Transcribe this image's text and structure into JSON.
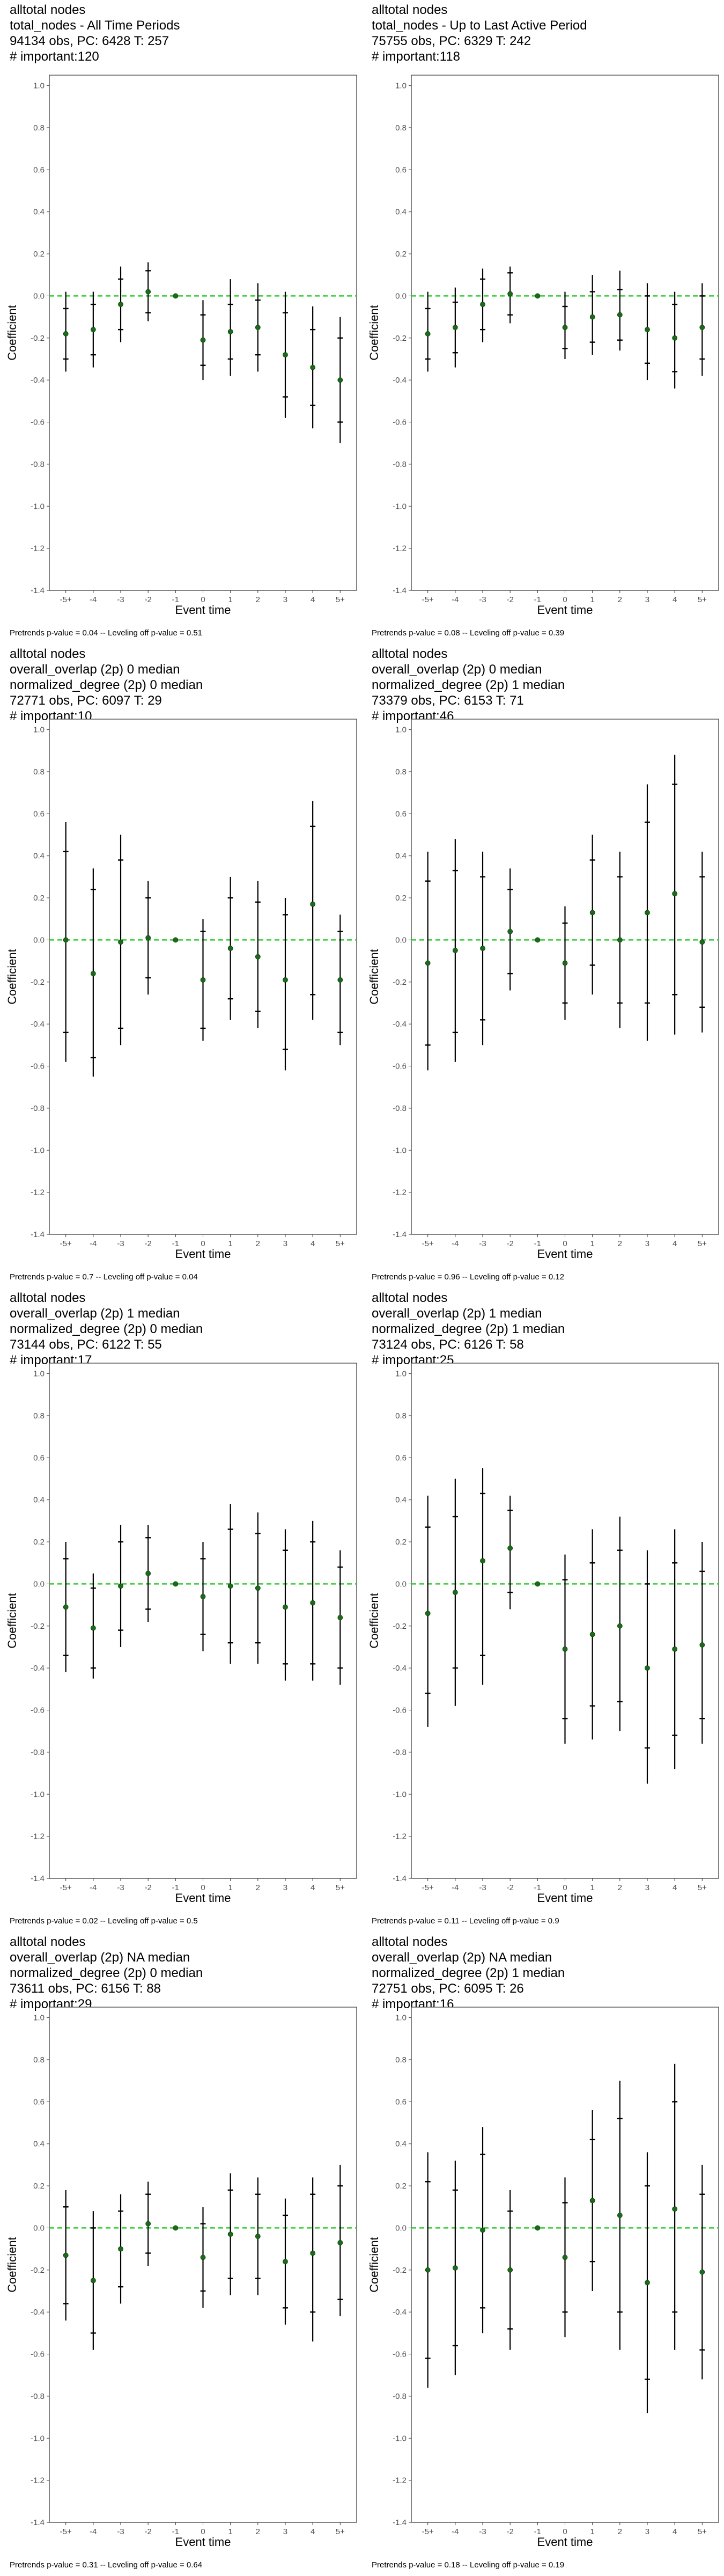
{
  "chart_data": [
    {
      "type": "scatter",
      "title_lines": [
        "alltotal nodes",
        "total_nodes - All Time Periods",
        "94134 obs, PC: 6428 T: 257",
        "# important:120"
      ],
      "xlabel": "Event time",
      "ylabel": "Coefficient",
      "ylim": [
        -1.4,
        1.05
      ],
      "categories": [
        "-5+",
        "-4",
        "-3",
        "-2",
        "-1",
        "0",
        "1",
        "2",
        "3",
        "4",
        "5+"
      ],
      "yticks": [
        "1.0",
        "0.8",
        "0.6",
        "0.4",
        "0.2",
        "0.0",
        "-0.2",
        "-0.4",
        "-0.6",
        "-0.8",
        "-1.0",
        "-1.2",
        "-1.4"
      ],
      "estimates": [
        -0.18,
        -0.16,
        -0.04,
        0.02,
        0.0,
        -0.21,
        -0.17,
        -0.15,
        -0.28,
        -0.34,
        -0.4
      ],
      "ci_inner": [
        [
          -0.3,
          -0.06
        ],
        [
          -0.28,
          -0.04
        ],
        [
          -0.16,
          0.08
        ],
        [
          -0.08,
          0.12
        ],
        null,
        [
          -0.33,
          -0.09
        ],
        [
          -0.3,
          -0.04
        ],
        [
          -0.28,
          -0.02
        ],
        [
          -0.48,
          -0.08
        ],
        [
          -0.52,
          -0.16
        ],
        [
          -0.6,
          -0.2
        ]
      ],
      "ci_outer": [
        [
          -0.36,
          0.02
        ],
        [
          -0.34,
          0.02
        ],
        [
          -0.22,
          0.14
        ],
        [
          -0.12,
          0.16
        ],
        null,
        [
          -0.4,
          -0.02
        ],
        [
          -0.38,
          0.08
        ],
        [
          -0.36,
          0.06
        ],
        [
          -0.58,
          0.02
        ],
        [
          -0.63,
          -0.05
        ],
        [
          -0.7,
          -0.1
        ]
      ],
      "zero_line_color": "#33cc33",
      "point_color": "#1a6b1a",
      "footer": "Pretrends p-value = 0.04 -- Leveling off p-value = 0.51"
    },
    {
      "type": "scatter",
      "title_lines": [
        "alltotal nodes",
        "total_nodes - Up to Last Active Period",
        "75755 obs, PC: 6329 T: 242",
        "# important:118"
      ],
      "xlabel": "Event time",
      "ylabel": "Coefficient",
      "ylim": [
        -1.4,
        1.05
      ],
      "categories": [
        "-5+",
        "-4",
        "-3",
        "-2",
        "-1",
        "0",
        "1",
        "2",
        "3",
        "4",
        "5+"
      ],
      "yticks": [
        "1.0",
        "0.8",
        "0.6",
        "0.4",
        "0.2",
        "0.0",
        "-0.2",
        "-0.4",
        "-0.6",
        "-0.8",
        "-1.0",
        "-1.2",
        "-1.4"
      ],
      "estimates": [
        -0.18,
        -0.15,
        -0.04,
        0.01,
        0.0,
        -0.15,
        -0.1,
        -0.09,
        -0.16,
        -0.2,
        -0.15
      ],
      "ci_inner": [
        [
          -0.3,
          -0.06
        ],
        [
          -0.27,
          -0.03
        ],
        [
          -0.16,
          0.08
        ],
        [
          -0.09,
          0.11
        ],
        null,
        [
          -0.25,
          -0.05
        ],
        [
          -0.22,
          0.02
        ],
        [
          -0.21,
          0.03
        ],
        [
          -0.32,
          0.0
        ],
        [
          -0.36,
          -0.04
        ],
        [
          -0.3,
          0.0
        ]
      ],
      "ci_outer": [
        [
          -0.36,
          0.02
        ],
        [
          -0.34,
          0.04
        ],
        [
          -0.22,
          0.13
        ],
        [
          -0.13,
          0.14
        ],
        null,
        [
          -0.3,
          0.02
        ],
        [
          -0.28,
          0.1
        ],
        [
          -0.26,
          0.12
        ],
        [
          -0.4,
          0.06
        ],
        [
          -0.44,
          0.02
        ],
        [
          -0.38,
          0.06
        ]
      ],
      "zero_line_color": "#33cc33",
      "point_color": "#1a6b1a",
      "footer": "Pretrends p-value = 0.08 -- Leveling off p-value = 0.39"
    },
    {
      "type": "scatter",
      "title_lines": [
        "alltotal nodes",
        "overall_overlap (2p) 0 median",
        "normalized_degree (2p) 0 median",
        "72771 obs, PC: 6097 T: 29",
        "# important:10"
      ],
      "xlabel": "Event time",
      "ylabel": "Coefficient",
      "ylim": [
        -1.4,
        1.05
      ],
      "categories": [
        "-5+",
        "-4",
        "-3",
        "-2",
        "-1",
        "0",
        "1",
        "2",
        "3",
        "4",
        "5+"
      ],
      "yticks": [
        "1.0",
        "0.8",
        "0.6",
        "0.4",
        "0.2",
        "0.0",
        "-0.2",
        "-0.4",
        "-0.6",
        "-0.8",
        "-1.0",
        "-1.2",
        "-1.4"
      ],
      "estimates": [
        0.0,
        -0.16,
        -0.01,
        0.01,
        0.0,
        -0.19,
        -0.04,
        -0.08,
        -0.19,
        0.17,
        -0.19
      ],
      "ci_inner": [
        [
          -0.44,
          0.42
        ],
        [
          -0.56,
          0.24
        ],
        [
          -0.42,
          0.38
        ],
        [
          -0.18,
          0.2
        ],
        null,
        [
          -0.42,
          0.04
        ],
        [
          -0.28,
          0.2
        ],
        [
          -0.34,
          0.18
        ],
        [
          -0.52,
          0.12
        ],
        [
          -0.26,
          0.54
        ],
        [
          -0.44,
          0.04
        ]
      ],
      "ci_outer": [
        [
          -0.58,
          0.56
        ],
        [
          -0.65,
          0.34
        ],
        [
          -0.5,
          0.5
        ],
        [
          -0.26,
          0.28
        ],
        null,
        [
          -0.48,
          0.1
        ],
        [
          -0.38,
          0.3
        ],
        [
          -0.42,
          0.28
        ],
        [
          -0.62,
          0.2
        ],
        [
          -0.38,
          0.66
        ],
        [
          -0.5,
          0.12
        ]
      ],
      "zero_line_color": "#33cc33",
      "point_color": "#1a6b1a",
      "footer": "Pretrends p-value = 0.7 -- Leveling off p-value = 0.04"
    },
    {
      "type": "scatter",
      "title_lines": [
        "alltotal nodes",
        "overall_overlap (2p) 0 median",
        "normalized_degree (2p) 1 median",
        "73379 obs, PC: 6153 T: 71",
        "# important:46"
      ],
      "xlabel": "Event time",
      "ylabel": "Coefficient",
      "ylim": [
        -1.4,
        1.05
      ],
      "categories": [
        "-5+",
        "-4",
        "-3",
        "-2",
        "-1",
        "0",
        "1",
        "2",
        "3",
        "4",
        "5+"
      ],
      "yticks": [
        "1.0",
        "0.8",
        "0.6",
        "0.4",
        "0.2",
        "0.0",
        "-0.2",
        "-0.4",
        "-0.6",
        "-0.8",
        "-1.0",
        "-1.2",
        "-1.4"
      ],
      "estimates": [
        -0.11,
        -0.05,
        -0.04,
        0.04,
        0.0,
        -0.11,
        0.13,
        0.0,
        0.13,
        0.22,
        -0.01
      ],
      "ci_inner": [
        [
          -0.5,
          0.28
        ],
        [
          -0.44,
          0.33
        ],
        [
          -0.38,
          0.3
        ],
        [
          -0.16,
          0.24
        ],
        null,
        [
          -0.3,
          0.08
        ],
        [
          -0.12,
          0.38
        ],
        [
          -0.3,
          0.3
        ],
        [
          -0.3,
          0.56
        ],
        [
          -0.26,
          0.74
        ],
        [
          -0.32,
          0.3
        ]
      ],
      "ci_outer": [
        [
          -0.62,
          0.42
        ],
        [
          -0.58,
          0.48
        ],
        [
          -0.5,
          0.42
        ],
        [
          -0.24,
          0.34
        ],
        null,
        [
          -0.38,
          0.16
        ],
        [
          -0.26,
          0.5
        ],
        [
          -0.42,
          0.42
        ],
        [
          -0.48,
          0.74
        ],
        [
          -0.45,
          0.88
        ],
        [
          -0.44,
          0.42
        ]
      ],
      "zero_line_color": "#33cc33",
      "point_color": "#1a6b1a",
      "footer": "Pretrends p-value = 0.96 -- Leveling off p-value = 0.12"
    },
    {
      "type": "scatter",
      "title_lines": [
        "alltotal nodes",
        "overall_overlap (2p) 1 median",
        "normalized_degree (2p) 0 median",
        "73144 obs, PC: 6122 T: 55",
        "# important:17"
      ],
      "xlabel": "Event time",
      "ylabel": "Coefficient",
      "ylim": [
        -1.4,
        1.05
      ],
      "categories": [
        "-5+",
        "-4",
        "-3",
        "-2",
        "-1",
        "0",
        "1",
        "2",
        "3",
        "4",
        "5+"
      ],
      "yticks": [
        "1.0",
        "0.8",
        "0.6",
        "0.4",
        "0.2",
        "0.0",
        "-0.2",
        "-0.4",
        "-0.6",
        "-0.8",
        "-1.0",
        "-1.2",
        "-1.4"
      ],
      "estimates": [
        -0.11,
        -0.21,
        -0.01,
        0.05,
        0.0,
        -0.06,
        -0.01,
        -0.02,
        -0.11,
        -0.09,
        -0.16
      ],
      "ci_inner": [
        [
          -0.34,
          0.12
        ],
        [
          -0.4,
          -0.02
        ],
        [
          -0.22,
          0.2
        ],
        [
          -0.12,
          0.22
        ],
        null,
        [
          -0.24,
          0.12
        ],
        [
          -0.28,
          0.26
        ],
        [
          -0.28,
          0.24
        ],
        [
          -0.38,
          0.16
        ],
        [
          -0.38,
          0.2
        ],
        [
          -0.4,
          0.08
        ]
      ],
      "ci_outer": [
        [
          -0.42,
          0.2
        ],
        [
          -0.45,
          0.05
        ],
        [
          -0.3,
          0.28
        ],
        [
          -0.18,
          0.28
        ],
        null,
        [
          -0.32,
          0.2
        ],
        [
          -0.38,
          0.38
        ],
        [
          -0.38,
          0.34
        ],
        [
          -0.46,
          0.26
        ],
        [
          -0.46,
          0.3
        ],
        [
          -0.48,
          0.16
        ]
      ],
      "zero_line_color": "#33cc33",
      "point_color": "#1a6b1a",
      "footer": "Pretrends p-value = 0.02 -- Leveling off p-value = 0.5"
    },
    {
      "type": "scatter",
      "title_lines": [
        "alltotal nodes",
        "overall_overlap (2p) 1 median",
        "normalized_degree (2p) 1 median",
        "73124 obs, PC: 6126 T: 58",
        "# important:25"
      ],
      "xlabel": "Event time",
      "ylabel": "Coefficient",
      "ylim": [
        -1.4,
        1.05
      ],
      "categories": [
        "-5+",
        "-4",
        "-3",
        "-2",
        "-1",
        "0",
        "1",
        "2",
        "3",
        "4",
        "5+"
      ],
      "yticks": [
        "1.0",
        "0.8",
        "0.6",
        "0.4",
        "0.2",
        "0.0",
        "-0.2",
        "-0.4",
        "-0.6",
        "-0.8",
        "-1.0",
        "-1.2",
        "-1.4"
      ],
      "estimates": [
        -0.14,
        -0.04,
        0.11,
        0.17,
        0.0,
        -0.31,
        -0.24,
        -0.2,
        -0.4,
        -0.31,
        -0.29
      ],
      "ci_inner": [
        [
          -0.52,
          0.27
        ],
        [
          -0.4,
          0.32
        ],
        [
          -0.34,
          0.43
        ],
        [
          -0.04,
          0.35
        ],
        null,
        [
          -0.64,
          0.02
        ],
        [
          -0.58,
          0.1
        ],
        [
          -0.56,
          0.16
        ],
        [
          -0.78,
          0.0
        ],
        [
          -0.72,
          0.1
        ],
        [
          -0.64,
          0.06
        ]
      ],
      "ci_outer": [
        [
          -0.68,
          0.42
        ],
        [
          -0.58,
          0.5
        ],
        [
          -0.48,
          0.55
        ],
        [
          -0.12,
          0.42
        ],
        null,
        [
          -0.76,
          0.14
        ],
        [
          -0.74,
          0.26
        ],
        [
          -0.7,
          0.32
        ],
        [
          -0.95,
          0.16
        ],
        [
          -0.88,
          0.26
        ],
        [
          -0.76,
          0.2
        ]
      ],
      "zero_line_color": "#33cc33",
      "point_color": "#1a6b1a",
      "footer": "Pretrends p-value = 0.11 -- Leveling off p-value = 0.9"
    },
    {
      "type": "scatter",
      "title_lines": [
        "alltotal nodes",
        "overall_overlap (2p) NA median",
        "normalized_degree (2p) 0 median",
        "73611 obs, PC: 6156 T: 88",
        "# important:29"
      ],
      "xlabel": "Event time",
      "ylabel": "Coefficient",
      "ylim": [
        -1.4,
        1.05
      ],
      "categories": [
        "-5+",
        "-4",
        "-3",
        "-2",
        "-1",
        "0",
        "1",
        "2",
        "3",
        "4",
        "5+"
      ],
      "yticks": [
        "1.0",
        "0.8",
        "0.6",
        "0.4",
        "0.2",
        "0.0",
        "-0.2",
        "-0.4",
        "-0.6",
        "-0.8",
        "-1.0",
        "-1.2",
        "-1.4"
      ],
      "estimates": [
        -0.13,
        -0.25,
        -0.1,
        0.02,
        0.0,
        -0.14,
        -0.03,
        -0.04,
        -0.16,
        -0.12,
        -0.07
      ],
      "ci_inner": [
        [
          -0.36,
          0.1
        ],
        [
          -0.5,
          0.0
        ],
        [
          -0.28,
          0.08
        ],
        [
          -0.12,
          0.16
        ],
        null,
        [
          -0.3,
          0.02
        ],
        [
          -0.24,
          0.18
        ],
        [
          -0.24,
          0.16
        ],
        [
          -0.38,
          0.06
        ],
        [
          -0.4,
          0.16
        ],
        [
          -0.34,
          0.2
        ]
      ],
      "ci_outer": [
        [
          -0.44,
          0.18
        ],
        [
          -0.58,
          0.08
        ],
        [
          -0.36,
          0.16
        ],
        [
          -0.18,
          0.22
        ],
        null,
        [
          -0.38,
          0.1
        ],
        [
          -0.32,
          0.26
        ],
        [
          -0.32,
          0.24
        ],
        [
          -0.46,
          0.14
        ],
        [
          -0.54,
          0.24
        ],
        [
          -0.42,
          0.3
        ]
      ],
      "zero_line_color": "#33cc33",
      "point_color": "#1a6b1a",
      "footer": "Pretrends p-value = 0.31 -- Leveling off p-value = 0.64"
    },
    {
      "type": "scatter",
      "title_lines": [
        "alltotal nodes",
        "overall_overlap (2p) NA median",
        "normalized_degree (2p) 1 median",
        "72751 obs, PC: 6095 T: 26",
        "# important:16"
      ],
      "xlabel": "Event time",
      "ylabel": "Coefficient",
      "ylim": [
        -1.4,
        1.05
      ],
      "categories": [
        "-5+",
        "-4",
        "-3",
        "-2",
        "-1",
        "0",
        "1",
        "2",
        "3",
        "4",
        "5+"
      ],
      "yticks": [
        "1.0",
        "0.8",
        "0.6",
        "0.4",
        "0.2",
        "0.0",
        "-0.2",
        "-0.4",
        "-0.6",
        "-0.8",
        "-1.0",
        "-1.2",
        "-1.4"
      ],
      "estimates": [
        -0.2,
        -0.19,
        -0.01,
        -0.2,
        0.0,
        -0.14,
        0.13,
        0.06,
        -0.26,
        0.09,
        -0.21
      ],
      "ci_inner": [
        [
          -0.62,
          0.22
        ],
        [
          -0.56,
          0.18
        ],
        [
          -0.38,
          0.35
        ],
        [
          -0.48,
          0.08
        ],
        null,
        [
          -0.4,
          0.12
        ],
        [
          -0.16,
          0.42
        ],
        [
          -0.4,
          0.52
        ],
        [
          -0.72,
          0.2
        ],
        [
          -0.4,
          0.6
        ],
        [
          -0.58,
          0.16
        ]
      ],
      "ci_outer": [
        [
          -0.76,
          0.36
        ],
        [
          -0.7,
          0.32
        ],
        [
          -0.5,
          0.48
        ],
        [
          -0.58,
          0.18
        ],
        null,
        [
          -0.52,
          0.24
        ],
        [
          -0.3,
          0.56
        ],
        [
          -0.58,
          0.7
        ],
        [
          -0.88,
          0.36
        ],
        [
          -0.58,
          0.78
        ],
        [
          -0.72,
          0.3
        ]
      ],
      "zero_line_color": "#33cc33",
      "point_color": "#1a6b1a",
      "footer": "Pretrends p-value = 0.18 -- Leveling off p-value = 0.19"
    }
  ]
}
